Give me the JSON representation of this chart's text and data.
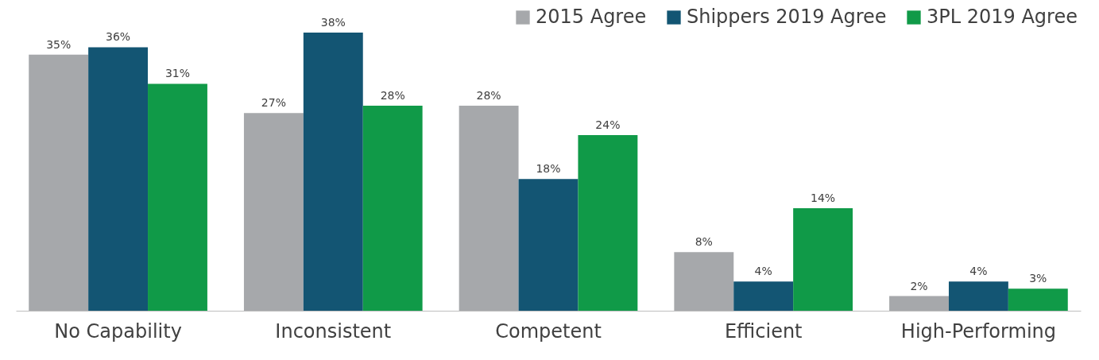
{
  "chart_data": {
    "type": "bar",
    "categories": [
      "No Capability",
      "Inconsistent",
      "Competent",
      "Efficient",
      "High-Performing"
    ],
    "series": [
      {
        "name": "2015 Agree",
        "color": "#a6a8ab",
        "values": [
          35,
          27,
          28,
          8,
          2
        ],
        "value_labels": [
          "35%",
          "27%",
          "28%",
          "8%",
          "2%"
        ]
      },
      {
        "name": "Shippers 2019 Agree",
        "color": "#135573",
        "values": [
          36,
          38,
          18,
          4,
          4
        ],
        "value_labels": [
          "36%",
          "38%",
          "18%",
          "4%",
          "4%"
        ]
      },
      {
        "name": "3PL 2019 Agree",
        "color": "#109a48",
        "values": [
          31,
          28,
          24,
          14,
          3
        ],
        "value_labels": [
          "31%",
          "28%",
          "24%",
          "14%",
          "3%"
        ]
      }
    ],
    "legend": "top right",
    "grid": false
  }
}
